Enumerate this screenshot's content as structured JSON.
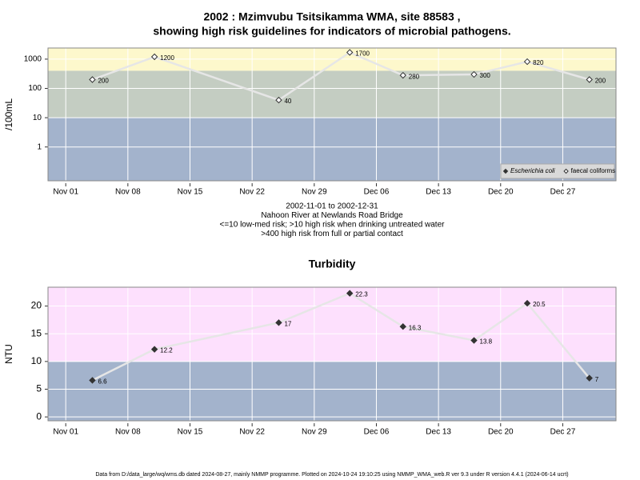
{
  "chart_data": [
    {
      "type": "line",
      "title": "2002 : Mzimvubu Tsitsikamma WMA, site 88583 ,",
      "subtitle": "showing high risk guidelines for indicators of microbial pathogens.",
      "ylabel": "/100mL",
      "notes": [
        "2002-11-01 to 2002-12-31",
        "Nahoon River at Newlands Road Bridge",
        "<=10 low-med risk; >10 high risk when drinking untreated water",
        ">400 high risk from full or partial contact"
      ],
      "x": [
        "2002-11-04",
        "2002-11-11",
        "2002-11-25",
        "2002-12-03",
        "2002-12-09",
        "2002-12-17",
        "2002-12-23",
        "2002-12-30"
      ],
      "series": [
        {
          "name": "Escherichia coli",
          "color": "#333333",
          "marker": "diamond",
          "filled": true,
          "values": [
            null,
            null,
            null,
            null,
            null,
            null,
            null,
            null
          ]
        },
        {
          "name": "faecal coliforms",
          "color": "#333333",
          "marker": "diamond",
          "filled": false,
          "values": [
            200,
            1200,
            40,
            1700,
            280,
            300,
            820,
            200
          ]
        }
      ],
      "xlim": [
        "2002-10-30",
        "2003-01-02"
      ],
      "xticks": [
        {
          "value": "2002-11-01",
          "label": "Nov 01"
        },
        {
          "value": "2002-11-08",
          "label": "Nov 08"
        },
        {
          "value": "2002-11-15",
          "label": "Nov 15"
        },
        {
          "value": "2002-11-22",
          "label": "Nov 22"
        },
        {
          "value": "2002-11-29",
          "label": "Nov 29"
        },
        {
          "value": "2002-12-06",
          "label": "Dec 06"
        },
        {
          "value": "2002-12-13",
          "label": "Dec 13"
        },
        {
          "value": "2002-12-20",
          "label": "Dec 20"
        },
        {
          "value": "2002-12-27",
          "label": "Dec 27"
        }
      ],
      "yscale": "log",
      "ylim": [
        0.07,
        2400
      ],
      "yticks": [
        1,
        10,
        100,
        1000
      ],
      "bands": [
        {
          "from": 0.07,
          "to": 10,
          "color": "#a3b3cc"
        },
        {
          "from": 10,
          "to": 400,
          "color": "#c4cdc2"
        },
        {
          "from": 400,
          "to": 2400,
          "color": "#fdf8cc"
        }
      ],
      "grid": true,
      "line_color": "#e6e6e6",
      "legend": "bottom-right"
    },
    {
      "type": "line",
      "title": "Turbidity",
      "ylabel": "NTU",
      "x": [
        "2002-11-04",
        "2002-11-11",
        "2002-11-25",
        "2002-12-03",
        "2002-12-09",
        "2002-12-17",
        "2002-12-23",
        "2002-12-30"
      ],
      "series": [
        {
          "name": "Turbidity",
          "color": "#333333",
          "marker": "diamond",
          "filled": true,
          "values": [
            6.6,
            12.2,
            17,
            22.3,
            16.3,
            13.8,
            20.5,
            7
          ]
        }
      ],
      "xlim": [
        "2002-10-30",
        "2003-01-02"
      ],
      "xticks": [
        {
          "value": "2002-11-01",
          "label": "Nov 01"
        },
        {
          "value": "2002-11-08",
          "label": "Nov 08"
        },
        {
          "value": "2002-11-15",
          "label": "Nov 15"
        },
        {
          "value": "2002-11-22",
          "label": "Nov 22"
        },
        {
          "value": "2002-11-29",
          "label": "Nov 29"
        },
        {
          "value": "2002-12-06",
          "label": "Dec 06"
        },
        {
          "value": "2002-12-13",
          "label": "Dec 13"
        },
        {
          "value": "2002-12-20",
          "label": "Dec 20"
        },
        {
          "value": "2002-12-27",
          "label": "Dec 27"
        }
      ],
      "yscale": "linear",
      "ylim": [
        -0.7,
        23.4
      ],
      "yticks": [
        0,
        5,
        10,
        15,
        20
      ],
      "bands": [
        {
          "from": -0.7,
          "to": 10,
          "color": "#a3b3cc"
        },
        {
          "from": 10,
          "to": 23.4,
          "color": "#fde0fd"
        }
      ],
      "grid": true,
      "line_color": "#e6e6e6"
    }
  ],
  "footer": "Data from D:/data_large/wq/wms.db dated 2024-08-27, mainly NMMP programme. Plotted on 2024-10-24 19:10:25 using NMMP_WMA_web.R ver 9.3 under R version 4.4.1 (2024-06-14 ucrt)"
}
